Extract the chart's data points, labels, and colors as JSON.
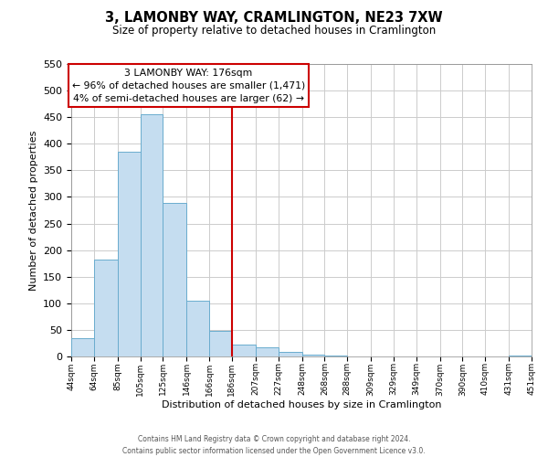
{
  "title": "3, LAMONBY WAY, CRAMLINGTON, NE23 7XW",
  "subtitle": "Size of property relative to detached houses in Cramlington",
  "xlabel": "Distribution of detached houses by size in Cramlington",
  "ylabel": "Number of detached properties",
  "bar_color": "#c5ddf0",
  "bar_edge_color": "#6aacce",
  "marker_line_color": "#cc0000",
  "ylim": [
    0,
    550
  ],
  "yticks": [
    0,
    50,
    100,
    150,
    200,
    250,
    300,
    350,
    400,
    450,
    500,
    550
  ],
  "bin_edges": [
    44,
    64,
    85,
    105,
    125,
    146,
    166,
    186,
    207,
    227,
    248,
    268,
    288,
    309,
    329,
    349,
    370,
    390,
    410,
    431,
    451
  ],
  "bin_labels": [
    "44sqm",
    "64sqm",
    "85sqm",
    "105sqm",
    "125sqm",
    "146sqm",
    "166sqm",
    "186sqm",
    "207sqm",
    "227sqm",
    "248sqm",
    "268sqm",
    "288sqm",
    "309sqm",
    "329sqm",
    "349sqm",
    "370sqm",
    "390sqm",
    "410sqm",
    "431sqm",
    "451sqm"
  ],
  "counts": [
    35,
    183,
    385,
    455,
    288,
    105,
    48,
    22,
    17,
    8,
    3,
    1,
    0,
    0,
    0,
    0,
    0,
    0,
    0,
    1
  ],
  "annotation_title": "3 LAMONBY WAY: 176sqm",
  "annotation_line1": "← 96% of detached houses are smaller (1,471)",
  "annotation_line2": "4% of semi-detached houses are larger (62) →",
  "annotation_box_color": "#ffffff",
  "annotation_box_edge_color": "#cc0000",
  "footer_line1": "Contains HM Land Registry data © Crown copyright and database right 2024.",
  "footer_line2": "Contains public sector information licensed under the Open Government Licence v3.0."
}
